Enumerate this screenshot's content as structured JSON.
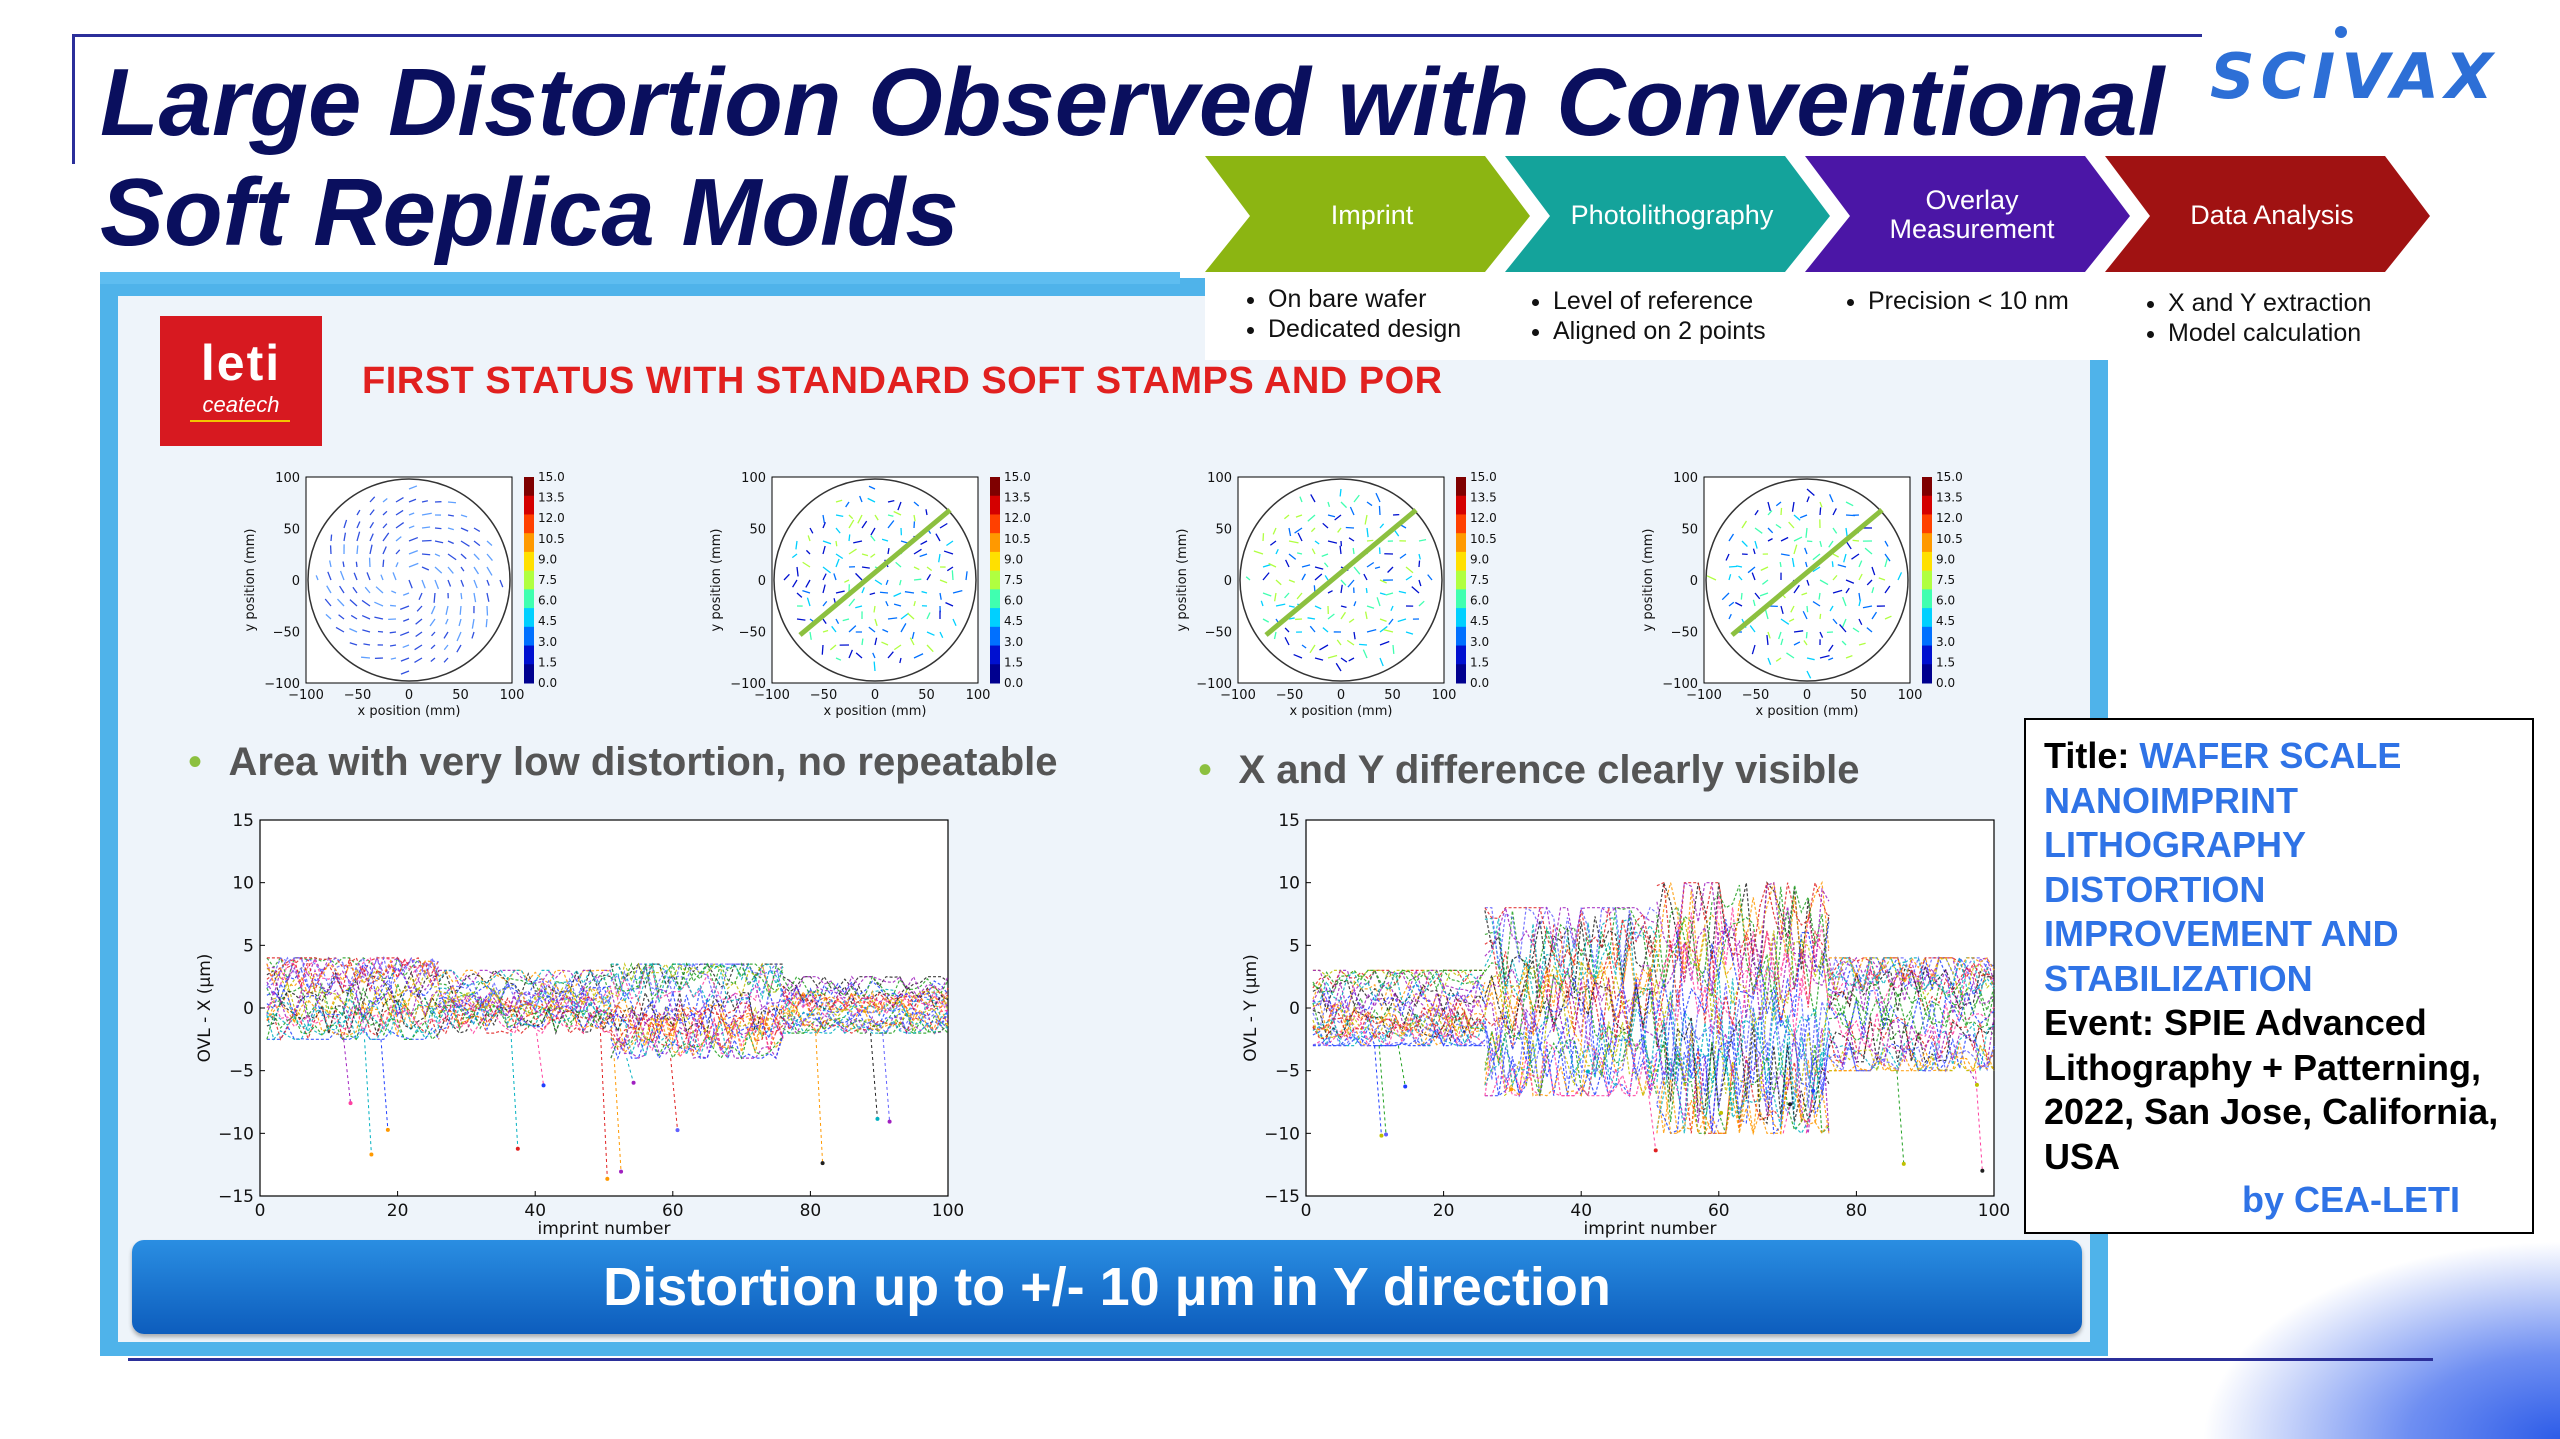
{
  "title": "Large Distortion Observed with Conventional\nSoft Replica Molds",
  "logo_text": "SCIVAX",
  "process": {
    "steps": [
      {
        "label": "Imprint",
        "color": "#8cb512",
        "items": [
          "On bare wafer",
          "Dedicated design"
        ]
      },
      {
        "label": "Photolithography",
        "color": "#14a39b",
        "items": [
          "Level of reference",
          "Aligned on 2 points"
        ]
      },
      {
        "label_line1": "Overlay",
        "label_line2": "Measurement",
        "color": "#4b16a6",
        "items": [
          "Precision < 10 nm"
        ]
      },
      {
        "label": "Data Analysis",
        "color": "#a01212",
        "items": [
          "X and Y extraction",
          "Model calculation"
        ]
      }
    ]
  },
  "leti": {
    "word": "leti",
    "sub": "ceatech"
  },
  "first_status": "FIRST STATUS WITH STANDARD SOFT STAMPS AND POR",
  "wafer_maps": {
    "xlabel": "x position (mm)",
    "ylabel": "y position (mm)",
    "ticks": [
      "100",
      "50",
      "0",
      "−50",
      "−100"
    ],
    "xticks": [
      "−100",
      "−50",
      "0",
      "50",
      "100"
    ],
    "colorbar_ticks": [
      "15.0",
      "13.5",
      "12.0",
      "10.5",
      "9.0",
      "7.5",
      "6.0",
      "4.5",
      "3.0",
      "1.5",
      "0.0"
    ]
  },
  "bullets": {
    "left": "Area with very low distortion, no repeatable",
    "right": "X and Y difference clearly visible"
  },
  "chart_data": [
    {
      "type": "line",
      "ylabel": "OVL - X (μm)",
      "xlabel": "imprint number",
      "xlim": [
        0,
        100
      ],
      "ylim": [
        -15,
        15
      ],
      "xticks": [
        "0",
        "20",
        "40",
        "60",
        "80",
        "100"
      ],
      "yticks": [
        "15",
        "10",
        "5",
        "0",
        "−5",
        "−10",
        "−15"
      ],
      "segments": [
        {
          "x_range": [
            1,
            26
          ],
          "band": [
            -2.5,
            4
          ]
        },
        {
          "x_range": [
            26,
            51
          ],
          "band": [
            -2,
            3
          ]
        },
        {
          "x_range": [
            51,
            76
          ],
          "band": [
            -4,
            3.5
          ]
        },
        {
          "x_range": [
            76,
            100
          ],
          "band": [
            -2,
            2.5
          ]
        }
      ]
    },
    {
      "type": "line",
      "ylabel": "OVL - Y (μm)",
      "xlabel": "imprint number",
      "xlim": [
        0,
        100
      ],
      "ylim": [
        -15,
        15
      ],
      "xticks": [
        "0",
        "20",
        "40",
        "60",
        "80",
        "100"
      ],
      "yticks": [
        "15",
        "10",
        "5",
        "0",
        "−5",
        "−10",
        "−15"
      ],
      "segments": [
        {
          "x_range": [
            1,
            26
          ],
          "band": [
            -3,
            3
          ]
        },
        {
          "x_range": [
            26,
            51
          ],
          "band": [
            -7,
            8
          ]
        },
        {
          "x_range": [
            51,
            76
          ],
          "band": [
            -10,
            10
          ]
        },
        {
          "x_range": [
            76,
            100
          ],
          "band": [
            -5,
            4
          ]
        }
      ]
    }
  ],
  "info": {
    "label": "Title: ",
    "title": "WAFER SCALE NANOIMPRINT LITHOGRAPHY DISTORTION IMPROVEMENT AND STABILIZATION",
    "event": "Event: SPIE Advanced Lithography + Patterning, 2022, San Jose, California, USA",
    "by": "by CEA-LETI"
  },
  "banner": "Distortion up to +/- 10 μm in Y direction"
}
